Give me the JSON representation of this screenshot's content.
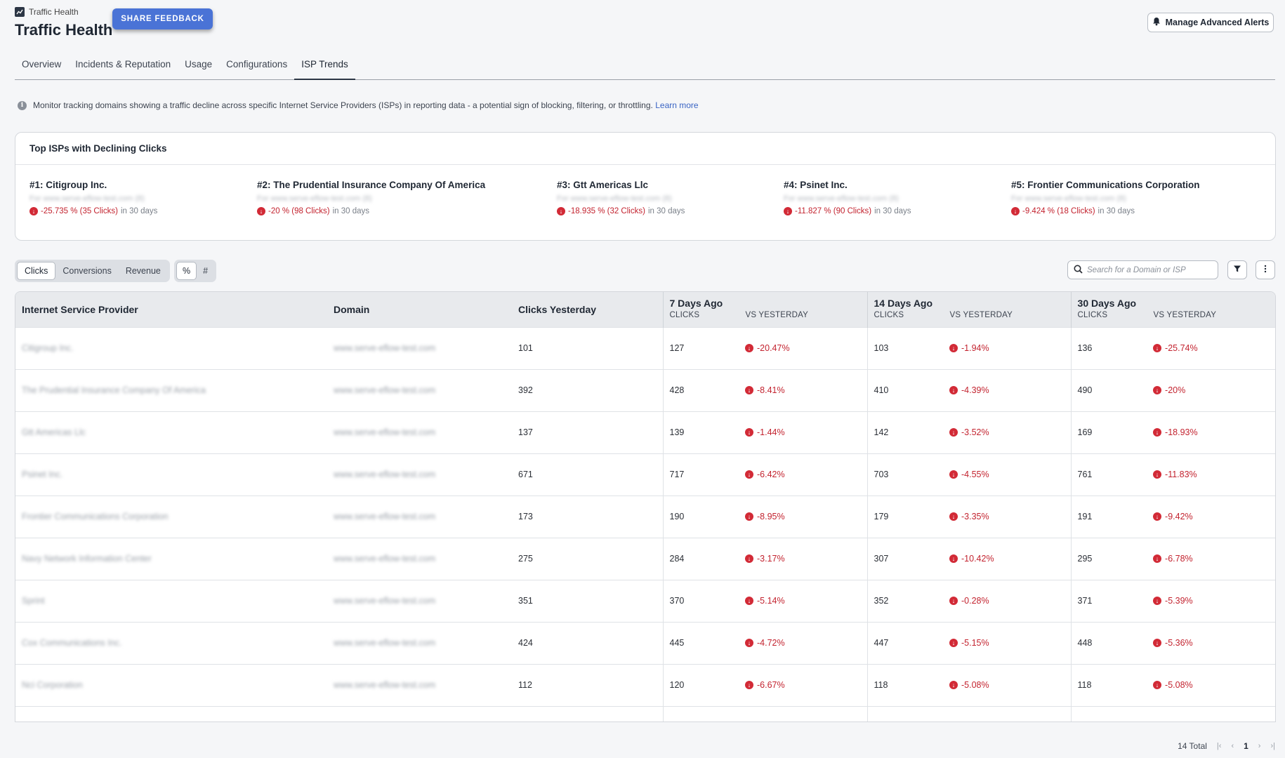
{
  "header": {
    "breadcrumb": "Traffic Health",
    "title": "Traffic Health",
    "feedback_label": "SHARE FEEDBACK",
    "alerts_label": "Manage Advanced Alerts"
  },
  "tabs": [
    {
      "label": "Overview"
    },
    {
      "label": "Incidents & Reputation"
    },
    {
      "label": "Usage"
    },
    {
      "label": "Configurations"
    },
    {
      "label": "ISP Trends"
    }
  ],
  "active_tab": "ISP Trends",
  "info": {
    "text": "Monitor tracking domains showing a traffic decline across specific Internet Service Providers (ISPs) in reporting data - a potential sign of blocking, filtering, or throttling.",
    "link": "Learn more"
  },
  "top_isps": {
    "title": "Top ISPs with Declining Clicks",
    "items": [
      {
        "name": "#1: Citigroup Inc.",
        "sub": "For www.serve-eflow-test.com (8)",
        "delta": "-25.735 % (35 Clicks)",
        "period": "in 30 days"
      },
      {
        "name": "#2: The Prudential Insurance Company Of America",
        "sub": "For www.serve-eflow-test.com (8)",
        "delta": "-20 % (98 Clicks)",
        "period": "in 30 days"
      },
      {
        "name": "#3: Gtt Americas Llc",
        "sub": "For www.serve-eflow-test.com (8)",
        "delta": "-18.935 % (32 Clicks)",
        "period": "in 30 days"
      },
      {
        "name": "#4: Psinet Inc.",
        "sub": "For www.serve-eflow-test.com (8)",
        "delta": "-11.827 % (90 Clicks)",
        "period": "in 30 days"
      },
      {
        "name": "#5: Frontier Communications Corporation",
        "sub": "For www.serve-eflow-test.com (8)",
        "delta": "-9.424 % (18 Clicks)",
        "period": "in 30 days"
      }
    ]
  },
  "metric_tabs": [
    {
      "label": "Clicks",
      "active": true
    },
    {
      "label": "Conversions",
      "active": false
    },
    {
      "label": "Revenue",
      "active": false
    }
  ],
  "unit_tabs": [
    {
      "label": "%",
      "active": true
    },
    {
      "label": "#",
      "active": false
    }
  ],
  "search": {
    "placeholder": "Search for a Domain or ISP"
  },
  "table": {
    "headers": {
      "isp": "Internet Service Provider",
      "domain": "Domain",
      "clicks_yesterday": "Clicks Yesterday",
      "g7": "7 Days Ago",
      "g14": "14 Days Ago",
      "g30": "30 Days Ago",
      "clicks": "CLICKS",
      "vs": "VS YESTERDAY"
    },
    "rows": [
      {
        "isp": "Citigroup Inc.",
        "domain": "www.serve-eflow-test.com",
        "yest": "101",
        "c7": "127",
        "v7": "-20.47%",
        "c14": "103",
        "v14": "-1.94%",
        "c30": "136",
        "v30": "-25.74%"
      },
      {
        "isp": "The Prudential Insurance Company Of America",
        "domain": "www.serve-eflow-test.com",
        "yest": "392",
        "c7": "428",
        "v7": "-8.41%",
        "c14": "410",
        "v14": "-4.39%",
        "c30": "490",
        "v30": "-20%"
      },
      {
        "isp": "Gtt Americas Llc",
        "domain": "www.serve-eflow-test.com",
        "yest": "137",
        "c7": "139",
        "v7": "-1.44%",
        "c14": "142",
        "v14": "-3.52%",
        "c30": "169",
        "v30": "-18.93%"
      },
      {
        "isp": "Psinet Inc.",
        "domain": "www.serve-eflow-test.com",
        "yest": "671",
        "c7": "717",
        "v7": "-6.42%",
        "c14": "703",
        "v14": "-4.55%",
        "c30": "761",
        "v30": "-11.83%"
      },
      {
        "isp": "Frontier Communications Corporation",
        "domain": "www.serve-eflow-test.com",
        "yest": "173",
        "c7": "190",
        "v7": "-8.95%",
        "c14": "179",
        "v14": "-3.35%",
        "c30": "191",
        "v30": "-9.42%"
      },
      {
        "isp": "Navy Network Information Center",
        "domain": "www.serve-eflow-test.com",
        "yest": "275",
        "c7": "284",
        "v7": "-3.17%",
        "c14": "307",
        "v14": "-10.42%",
        "c30": "295",
        "v30": "-6.78%"
      },
      {
        "isp": "Sprint",
        "domain": "www.serve-eflow-test.com",
        "yest": "351",
        "c7": "370",
        "v7": "-5.14%",
        "c14": "352",
        "v14": "-0.28%",
        "c30": "371",
        "v30": "-5.39%"
      },
      {
        "isp": "Cox Communications Inc.",
        "domain": "www.serve-eflow-test.com",
        "yest": "424",
        "c7": "445",
        "v7": "-4.72%",
        "c14": "447",
        "v14": "-5.15%",
        "c30": "448",
        "v30": "-5.36%"
      },
      {
        "isp": "Nci Corporation",
        "domain": "www.serve-eflow-test.com",
        "yest": "112",
        "c7": "120",
        "v7": "-6.67%",
        "c14": "118",
        "v14": "-5.08%",
        "c30": "118",
        "v30": "-5.08%"
      }
    ]
  },
  "footer": {
    "total": "14 Total",
    "page": "1"
  },
  "colors": {
    "accent": "#4a73d6",
    "negative": "#c3232f",
    "link": "#3a64c4"
  }
}
